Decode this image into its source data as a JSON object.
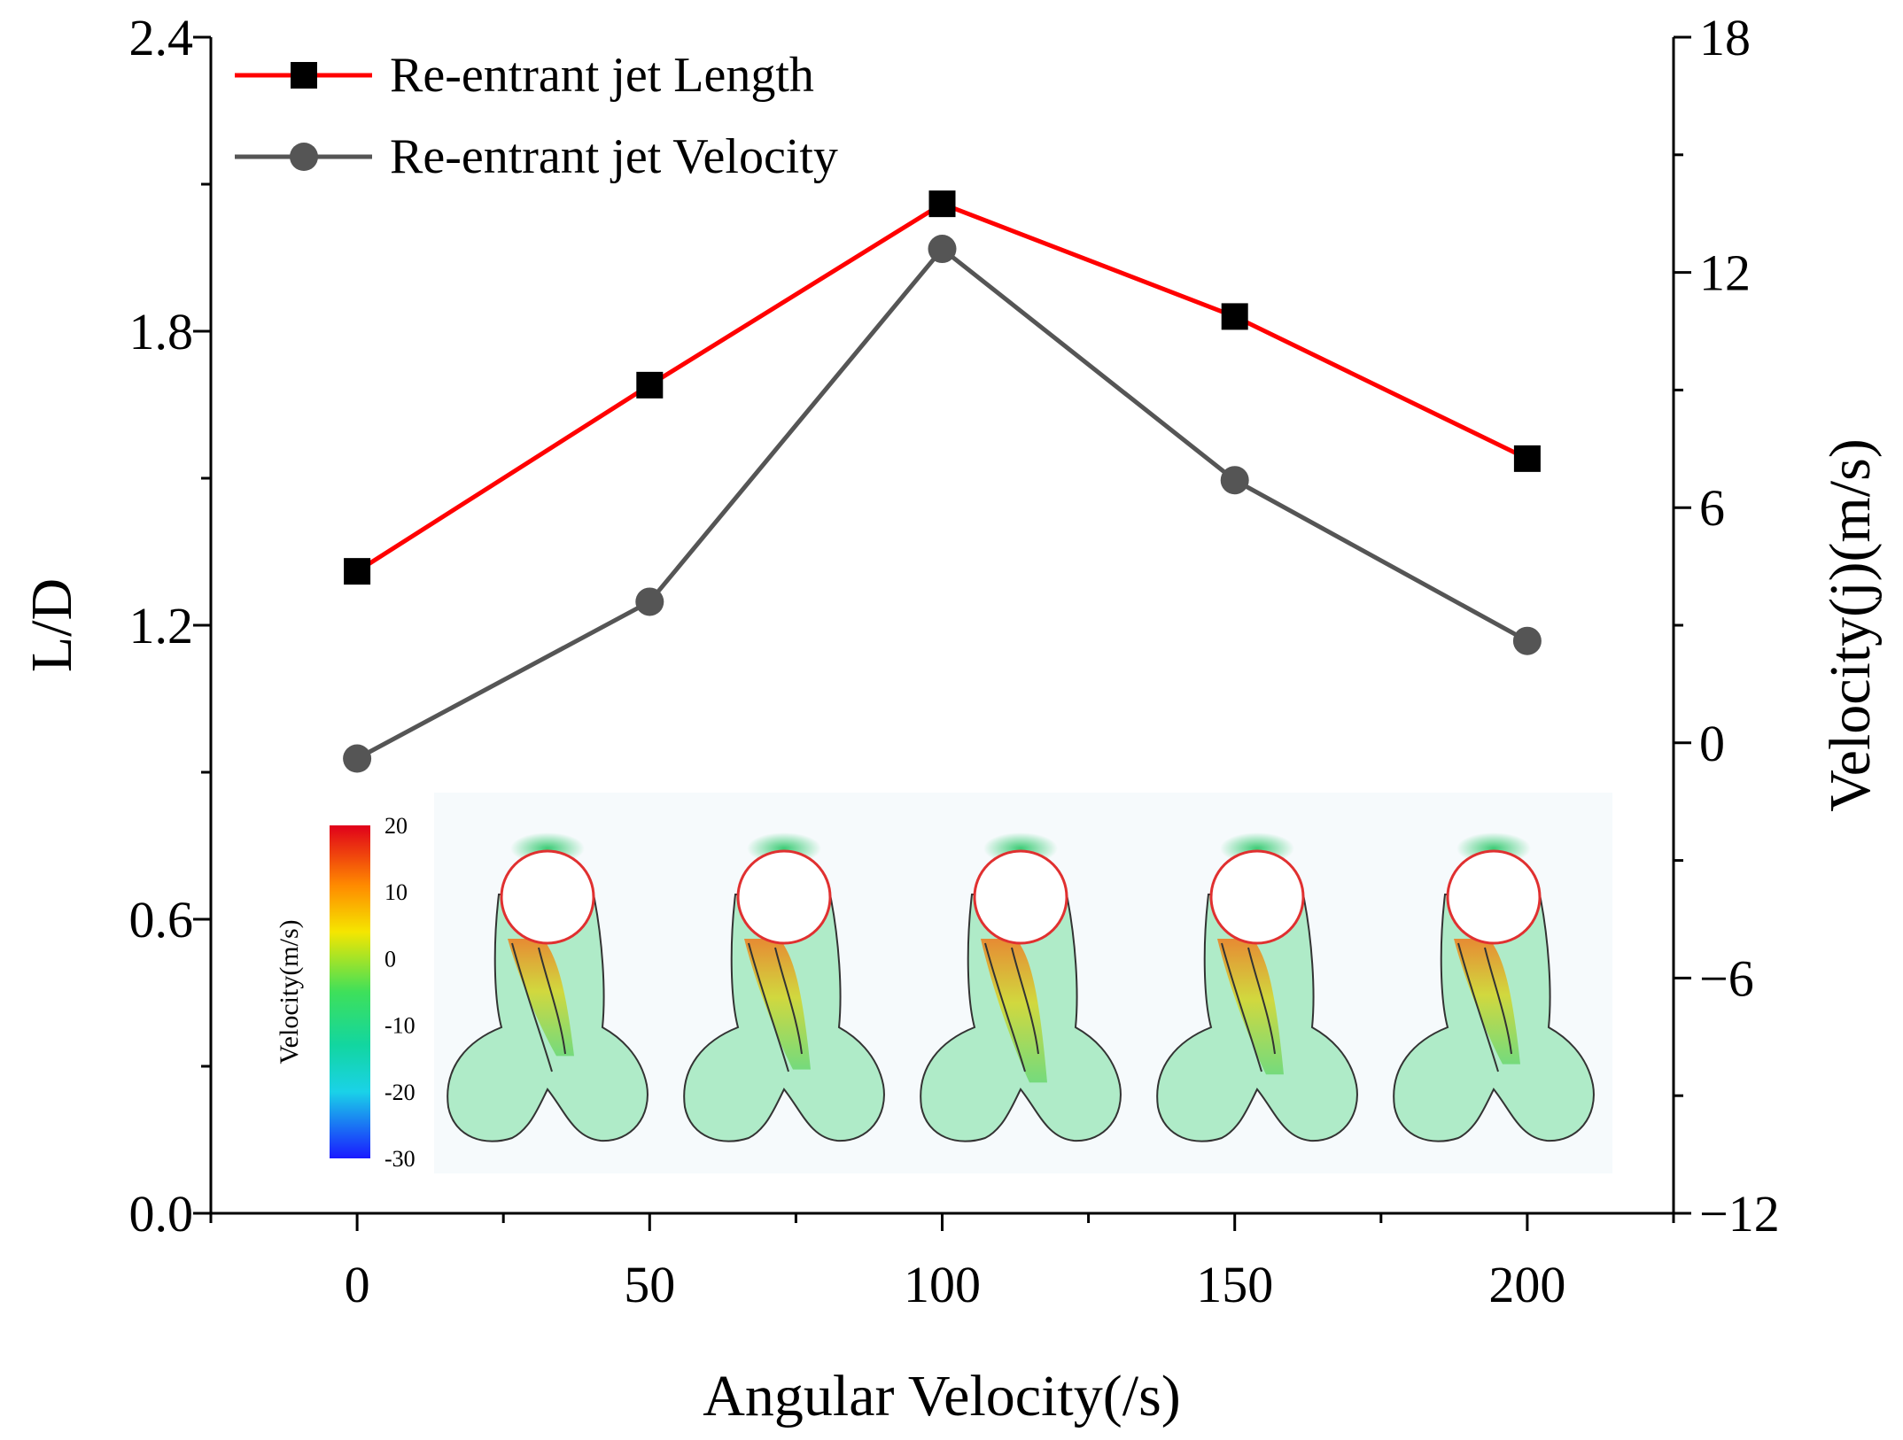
{
  "chart_data": {
    "type": "line",
    "x": [
      0,
      50,
      100,
      150,
      200
    ],
    "xlabel": "Angular Velocity(/s)",
    "ylabel": "L/D",
    "y2label": "Velocity(j)(m/s)",
    "xlim": [
      -25,
      225
    ],
    "ylim": [
      0.0,
      2.4
    ],
    "y2lim": [
      -12,
      18
    ],
    "xticks": [
      "0",
      "50",
      "100",
      "150",
      "200"
    ],
    "yticks": [
      "0.0",
      "0.6",
      "1.2",
      "1.8",
      "2.4"
    ],
    "y2ticks": [
      "−12",
      "−6",
      "0",
      "6",
      "12",
      "18"
    ],
    "series": [
      {
        "name": "Re-entrant jet Length",
        "axis": "left",
        "values": [
          1.31,
          1.69,
          2.06,
          1.83,
          1.54
        ],
        "color": "#ff0000",
        "marker": "square",
        "marker_color": "#000000"
      },
      {
        "name": "Re-entrant jet Velocity",
        "axis": "right",
        "values": [
          -0.4,
          3.6,
          12.6,
          6.7,
          2.6
        ],
        "color": "#555555",
        "marker": "circle",
        "marker_color": "#555555"
      }
    ],
    "legend": "top-left",
    "inset": {
      "colorbar_label": "Velocity(m/s)",
      "colorbar_ticks": [
        "20",
        "10",
        "0",
        "-10",
        "-20",
        "-30"
      ],
      "panels": 5
    }
  }
}
